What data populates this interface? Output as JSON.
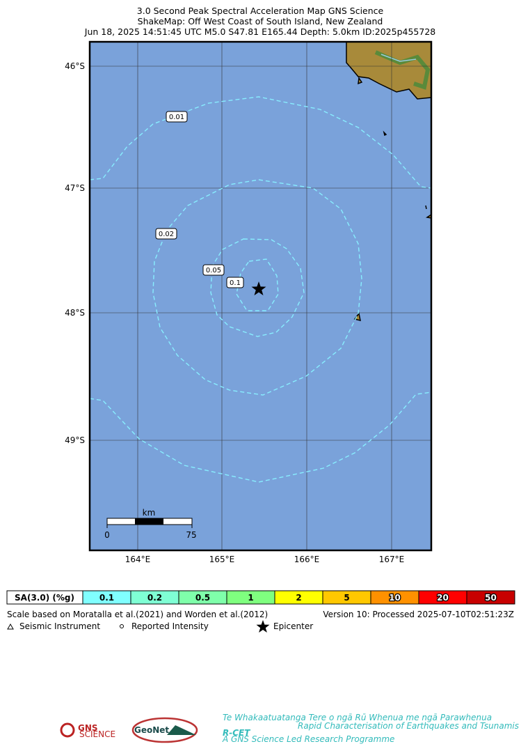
{
  "header": {
    "lines": [
      "3.0 Second Peak Spectral Acceleration Map GNS Science",
      "ShakeMap: Off West Coast of South Island, New Zealand",
      "Jun 18, 2025 14:51:45 UTC M5.0 S47.81 E165.44 Depth: 5.0km ID:2025p455728"
    ]
  },
  "map": {
    "lat_labels": [
      "46°S",
      "47°S",
      "48°S",
      "49°S"
    ],
    "lon_labels": [
      "164°E",
      "165°E",
      "166°E",
      "167°E"
    ],
    "contour_labels": [
      "0.01",
      "0.02",
      "0.05",
      "0.1"
    ],
    "scale_bar": {
      "unit": "km",
      "start": "0",
      "end": "75"
    }
  },
  "legend": {
    "title": "SA(3.0) (%g)",
    "bins": [
      {
        "label": "0.1",
        "color": "#80ffff"
      },
      {
        "label": "0.2",
        "color": "#7fffd4"
      },
      {
        "label": "0.5",
        "color": "#7fffaa"
      },
      {
        "label": "1",
        "color": "#7fff7f"
      },
      {
        "label": "2",
        "color": "#ffff00"
      },
      {
        "label": "5",
        "color": "#ffc800"
      },
      {
        "label": "10",
        "color": "#ff9100"
      },
      {
        "label": "20",
        "color": "#ff0000"
      },
      {
        "label": "50",
        "color": "#c80000"
      }
    ]
  },
  "footer": {
    "note": "Scale based on Moratalla et al.(2021) and Worden et al.(2012)",
    "version": "Version 10: Processed 2025-07-10T02:51:23Z",
    "symbols": [
      "Seismic Instrument",
      "Reported Intensity",
      "Epicenter"
    ]
  },
  "logos": {
    "gns": "GNS",
    "gns_sub": "SCIENCE",
    "geonet": "GeoNet",
    "rcet": "R-CET",
    "rcet_top": "Te Whakaatuatanga Tere o ngā Rū Whenua me ngā Parawhenua",
    "rcet_side": "Rapid Characterisation of Earthquakes and Tsunamis",
    "rcet_bottom": "A GNS Science Led Research Programme"
  }
}
